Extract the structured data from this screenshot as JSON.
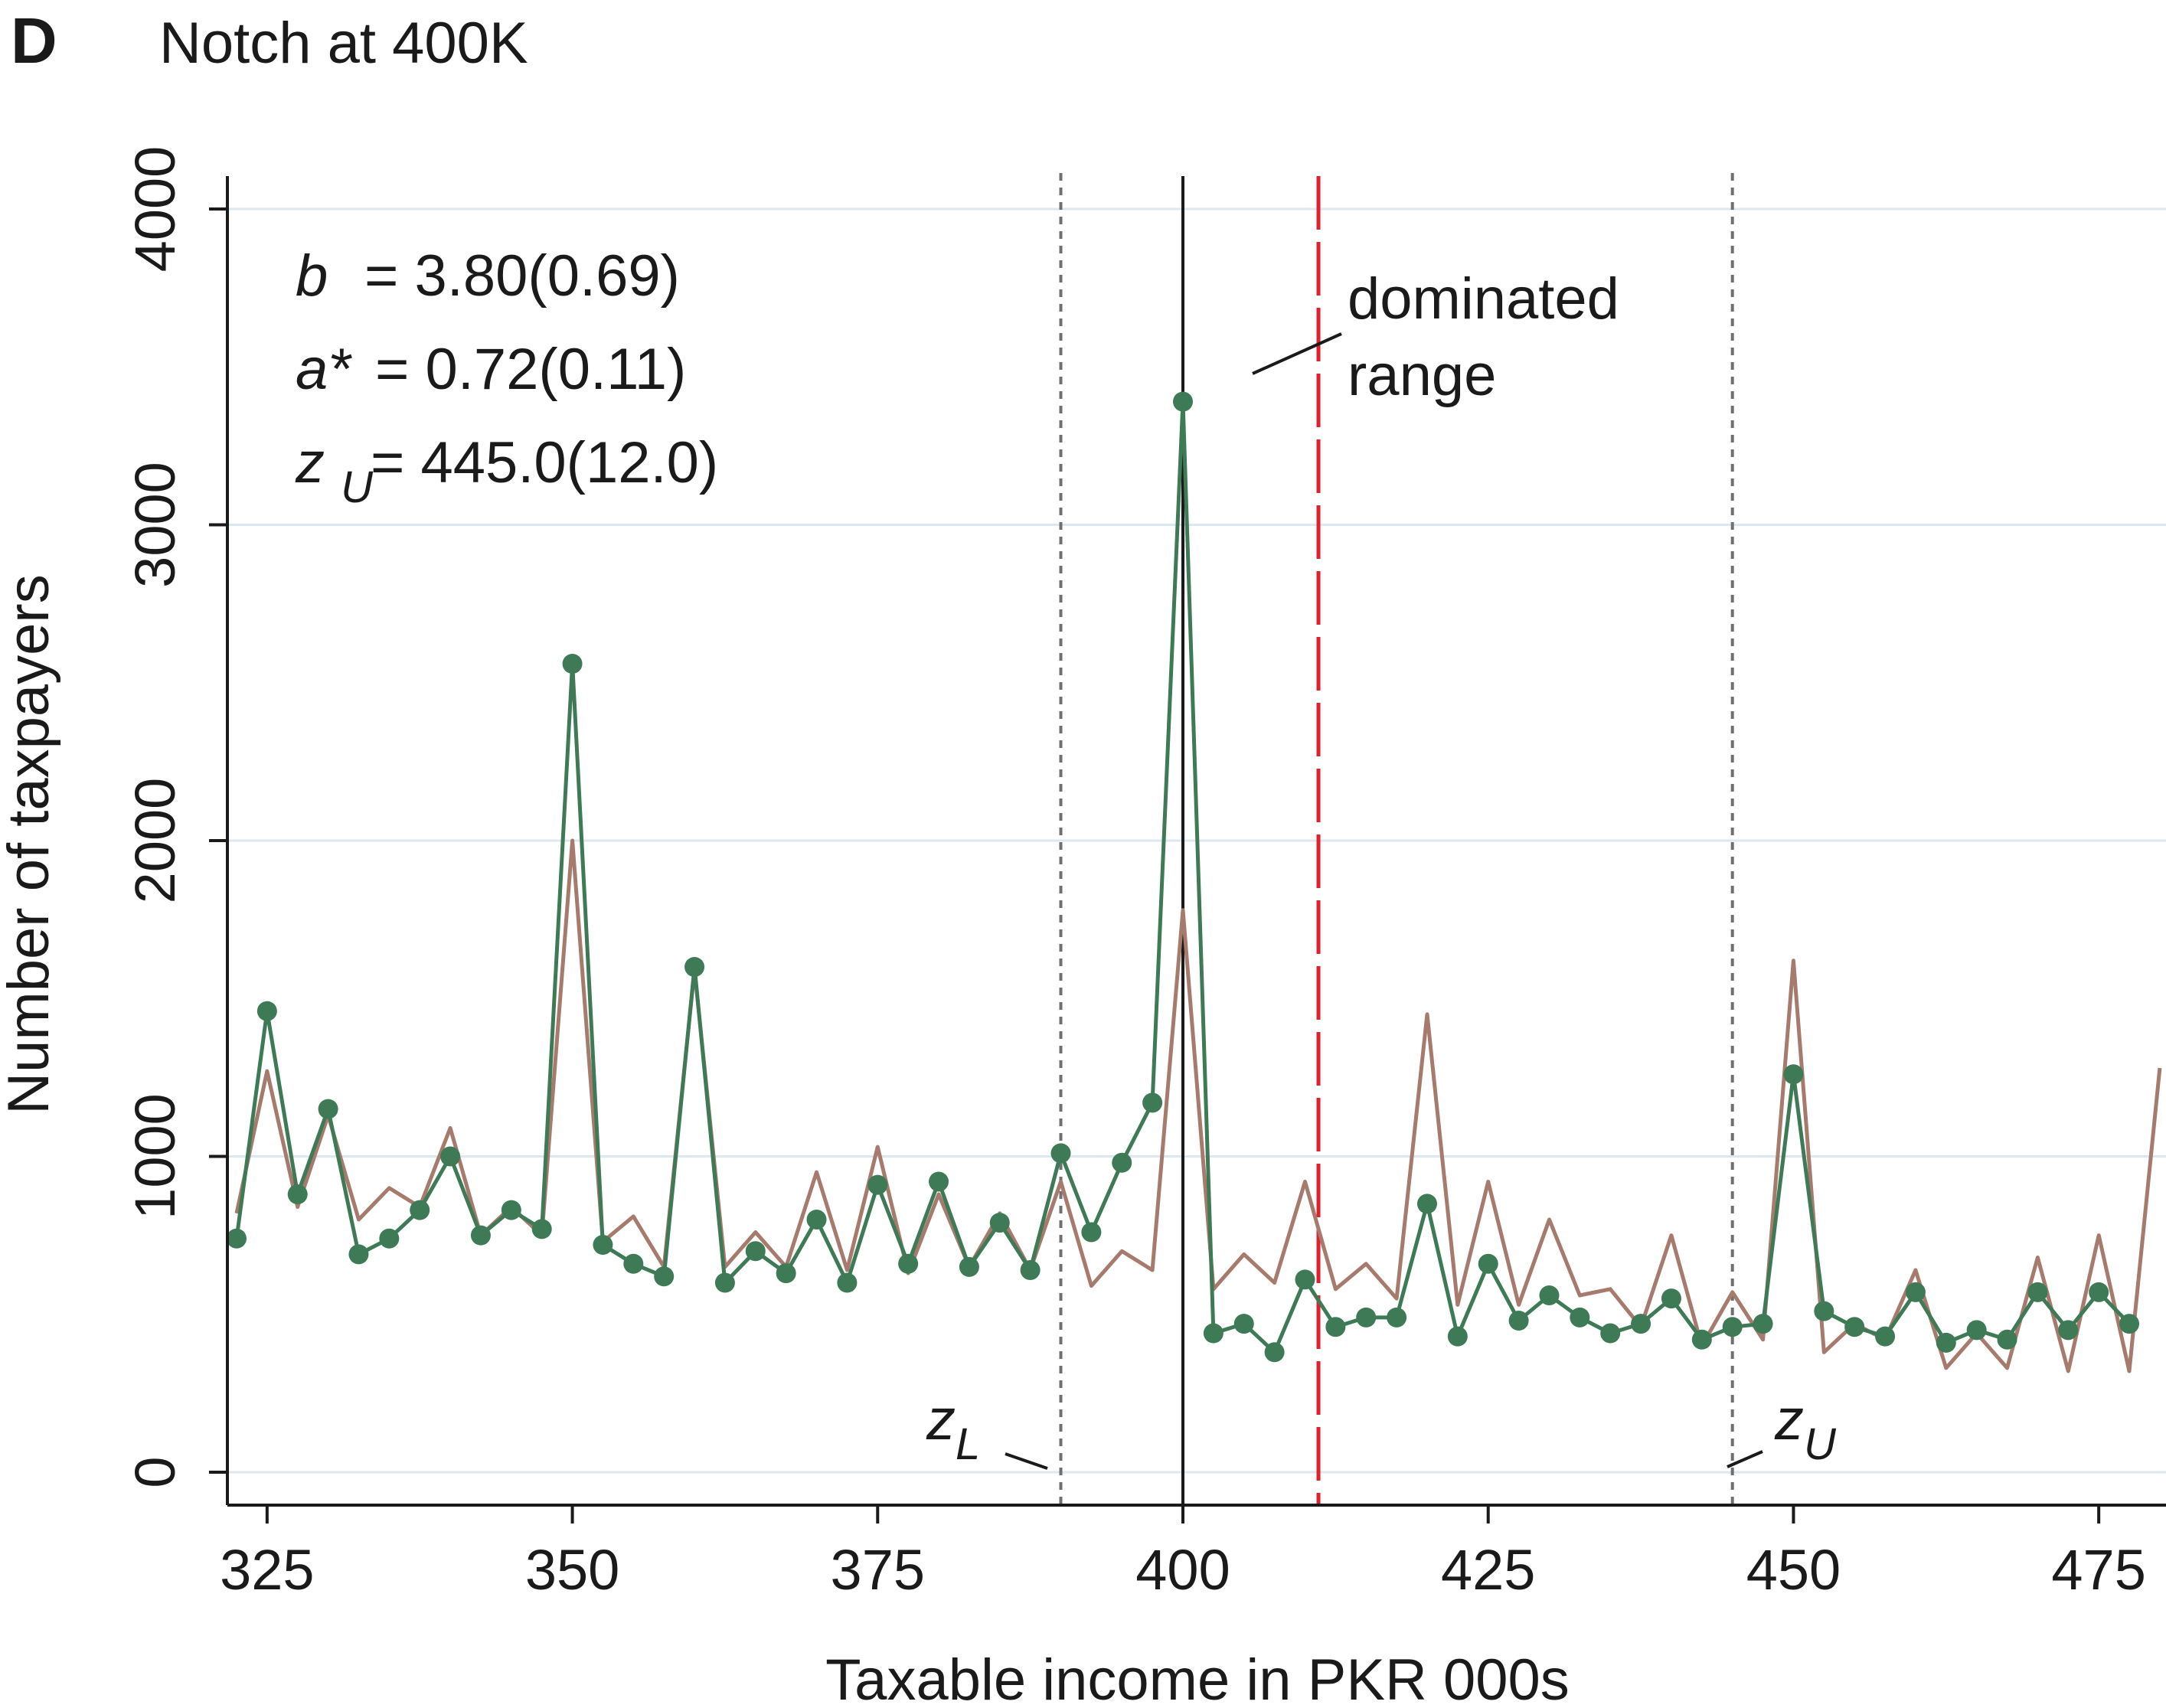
{
  "panel": {
    "letter": "D",
    "title": "Notch at 400K"
  },
  "stats": {
    "b": {
      "symbol": "b",
      "value": "= 3.80(0.69)"
    },
    "a": {
      "symbol": "a*",
      "value": "= 0.72(0.11)"
    },
    "zu": {
      "symbol": "z",
      "subscript": "U",
      "value": "= 445.0(12.0)"
    }
  },
  "annotations": {
    "dominated_line1": "dominated",
    "dominated_line2": "range",
    "zl_label": "z",
    "zl_sub": "L",
    "zu_label": "z",
    "zu_sub": "U"
  },
  "chart_data": {
    "type": "line",
    "xlabel": "Taxable income in PKR 000s",
    "ylabel": "Number of taxpayers",
    "xlim": [
      322,
      481
    ],
    "ylim": [
      -100,
      4100
    ],
    "x_ticks": [
      325,
      350,
      375,
      400,
      425,
      450,
      475
    ],
    "y_ticks": [
      0,
      1000,
      2000,
      3000,
      4000
    ],
    "grid": "horizontal",
    "legend": "none",
    "vertical_lines": [
      {
        "x": 390,
        "style": "dotted",
        "color": "#707070"
      },
      {
        "x": 400,
        "style": "solid",
        "color": "#1a1a1a"
      },
      {
        "x": 411.1,
        "style": "dashed",
        "color": "#e0202a"
      },
      {
        "x": 445,
        "style": "dotted",
        "color": "#707070"
      }
    ],
    "series": [
      {
        "color": "#3e7a56",
        "markers": true,
        "x": [
          322.5,
          325,
          327.5,
          330,
          332.5,
          335,
          337.5,
          340,
          342.5,
          345,
          347.5,
          350,
          352.5,
          355,
          357.5,
          360,
          362.5,
          365,
          367.5,
          370,
          372.5,
          375,
          377.5,
          380,
          382.5,
          385,
          387.5,
          390,
          392.5,
          395,
          397.5,
          400,
          402.5,
          405,
          407.5,
          410,
          412.5,
          415,
          417.5,
          420,
          422.5,
          425,
          427.5,
          430,
          432.5,
          435,
          437.5,
          440,
          442.5,
          445,
          447.5,
          450,
          452.5,
          455,
          457.5,
          460,
          462.5,
          465,
          467.5,
          470,
          472.5,
          475,
          477.5
        ],
        "y": [
          740,
          1460,
          880,
          1150,
          690,
          740,
          830,
          1000,
          750,
          830,
          770,
          2560,
          720,
          660,
          620,
          1600,
          600,
          700,
          630,
          800,
          600,
          910,
          660,
          920,
          650,
          790,
          640,
          1010,
          760,
          980,
          1170,
          3390,
          440,
          470,
          380,
          610,
          460,
          490,
          490,
          850,
          430,
          660,
          480,
          560,
          490,
          440,
          470,
          550,
          420,
          460,
          470,
          1260,
          510,
          460,
          430,
          570,
          410,
          450,
          420,
          570,
          450,
          570,
          470
        ]
      },
      {
        "color": "#a67a6c",
        "markers": false,
        "x": [
          322.5,
          325,
          327.5,
          330,
          332.5,
          335,
          337.5,
          340,
          342.5,
          345,
          347.5,
          350,
          352.5,
          355,
          357.5,
          360,
          362.5,
          365,
          367.5,
          370,
          372.5,
          375,
          377.5,
          380,
          382.5,
          385,
          387.5,
          390,
          392.5,
          395,
          397.5,
          400,
          402.5,
          405,
          407.5,
          410,
          412.5,
          415,
          417.5,
          420,
          422.5,
          425,
          427.5,
          430,
          432.5,
          435,
          437.5,
          440,
          442.5,
          445,
          447.5,
          450,
          452.5,
          455,
          457.5,
          460,
          462.5,
          465,
          467.5,
          470,
          472.5,
          475,
          477.5,
          480
        ],
        "y": [
          820,
          1270,
          840,
          1130,
          800,
          900,
          840,
          1090,
          750,
          840,
          750,
          2000,
          730,
          810,
          650,
          1590,
          650,
          760,
          650,
          950,
          640,
          1030,
          630,
          880,
          650,
          820,
          640,
          920,
          590,
          700,
          640,
          1780,
          580,
          690,
          600,
          920,
          580,
          660,
          550,
          1450,
          530,
          920,
          530,
          800,
          560,
          580,
          460,
          750,
          400,
          570,
          420,
          1620,
          380,
          470,
          420,
          640,
          330,
          440,
          330,
          680,
          320,
          750,
          320,
          1280
        ]
      }
    ]
  }
}
